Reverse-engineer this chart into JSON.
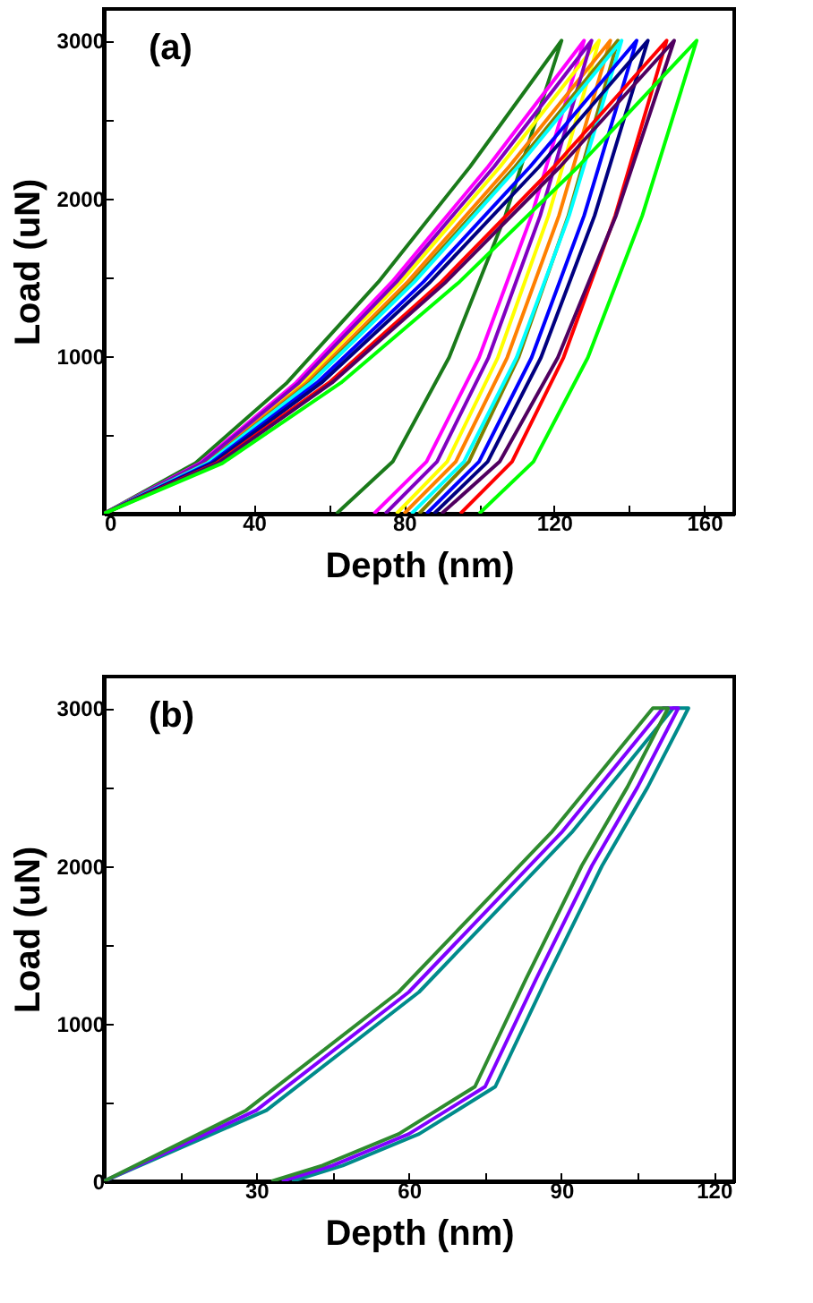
{
  "chart_data": [
    {
      "type": "line",
      "xlabel": "Depth (nm)",
      "ylabel": "Load (uN)",
      "annotations": [
        "(a)"
      ],
      "marker": "none",
      "line_style": "solid",
      "grid": false,
      "xlim": [
        0,
        168
      ],
      "ylim": [
        0,
        3200
      ],
      "xticks": [
        0,
        {
          "value": 20,
          "label": null
        },
        40,
        {
          "value": 60,
          "label": null
        },
        80,
        {
          "value": 100,
          "label": null
        },
        120,
        {
          "value": 140,
          "label": null
        },
        160
      ],
      "yticks": [
        {
          "value": 500,
          "label": null
        },
        1000,
        {
          "value": 1500,
          "label": null
        },
        2000,
        {
          "value": 2500,
          "label": null
        },
        3000
      ],
      "series": [
        {
          "color": "#1a7a1a",
          "x": [
            0,
            24.4,
            48.8,
            73.2,
            97.6,
            122,
            107,
            92,
            77,
            62
          ],
          "values": [
            0,
            320,
            830,
            1470,
            2200,
            3000,
            1890,
            990,
            330,
            0
          ]
        },
        {
          "color": "#ff00ff",
          "x": [
            0,
            25.6,
            51.2,
            76.8,
            102.4,
            128,
            114,
            100,
            86,
            72
          ],
          "values": [
            0,
            320,
            830,
            1470,
            2200,
            3000,
            1890,
            990,
            330,
            0
          ]
        },
        {
          "color": "#ffff00",
          "x": [
            0,
            26.4,
            52.8,
            79.2,
            105.6,
            132,
            118.5,
            105,
            91.5,
            78
          ],
          "values": [
            0,
            320,
            830,
            1470,
            2200,
            3000,
            1890,
            990,
            330,
            0
          ]
        },
        {
          "color": "#ff8000",
          "x": [
            0,
            27,
            54,
            81,
            108,
            135,
            121.3,
            107.5,
            93.8,
            80
          ],
          "values": [
            0,
            320,
            830,
            1470,
            2200,
            3000,
            1890,
            990,
            330,
            0
          ]
        },
        {
          "color": "#8000c0",
          "x": [
            0,
            26,
            52,
            78,
            104,
            130,
            116.3,
            102.5,
            88.8,
            75
          ],
          "values": [
            0,
            320,
            830,
            1470,
            2200,
            3000,
            1890,
            990,
            330,
            0
          ]
        },
        {
          "color": "#808000",
          "x": [
            0,
            27.4,
            54.8,
            82.2,
            109.6,
            137,
            123.8,
            110.5,
            97.3,
            84
          ],
          "values": [
            0,
            320,
            830,
            1470,
            2200,
            3000,
            1890,
            990,
            330,
            0
          ]
        },
        {
          "color": "#00ffff",
          "x": [
            0,
            27.6,
            55.2,
            82.8,
            110.4,
            138,
            124,
            110,
            96,
            82
          ],
          "values": [
            0,
            320,
            830,
            1470,
            2200,
            3000,
            1890,
            990,
            330,
            0
          ]
        },
        {
          "color": "#0000ff",
          "x": [
            0,
            28.4,
            56.8,
            85.2,
            113.6,
            142,
            128,
            114,
            100,
            86
          ],
          "values": [
            0,
            320,
            830,
            1470,
            2200,
            3000,
            1890,
            990,
            330,
            0
          ]
        },
        {
          "color": "#000080",
          "x": [
            0,
            29,
            58,
            87,
            116,
            145,
            130.8,
            116.5,
            102.3,
            88
          ],
          "values": [
            0,
            320,
            830,
            1470,
            2200,
            3000,
            1890,
            990,
            330,
            0
          ]
        },
        {
          "color": "#ff0000",
          "x": [
            0,
            30,
            60,
            90,
            120,
            150,
            136.3,
            122.5,
            108.8,
            95
          ],
          "values": [
            0,
            320,
            830,
            1470,
            2200,
            3000,
            1890,
            990,
            330,
            0
          ]
        },
        {
          "color": "#500060",
          "x": [
            0,
            30.4,
            60.8,
            91.2,
            121.6,
            152,
            136.5,
            121,
            105.5,
            90
          ],
          "values": [
            0,
            320,
            830,
            1470,
            2200,
            3000,
            1890,
            990,
            330,
            0
          ]
        },
        {
          "color": "#00ff00",
          "x": [
            0,
            31.6,
            63.2,
            94.8,
            126.4,
            158,
            143.5,
            129,
            114.5,
            100
          ],
          "values": [
            0,
            320,
            830,
            1470,
            2200,
            3000,
            1890,
            990,
            330,
            0
          ]
        }
      ]
    },
    {
      "type": "line",
      "xlabel": "Depth (nm)",
      "ylabel": "Load (uN)",
      "annotations": [
        "(b)"
      ],
      "marker": "none",
      "line_style": "solid",
      "grid": false,
      "xlim": [
        0,
        124
      ],
      "ylim": [
        0,
        3200
      ],
      "xticks": [
        {
          "value": 15,
          "label": null
        },
        30,
        {
          "value": 45,
          "label": null
        },
        60,
        {
          "value": 75,
          "label": null
        },
        90,
        {
          "value": 105,
          "label": null
        },
        120
      ],
      "yticks": [
        0,
        {
          "value": 500,
          "label": null
        },
        1000,
        {
          "value": 1500,
          "label": null
        },
        2000,
        {
          "value": 2500,
          "label": null
        },
        3000
      ],
      "series": [
        {
          "color": "#008b8b",
          "x": [
            0,
            32,
            62,
            92,
            112,
            115,
            107,
            98,
            87,
            77,
            62,
            47,
            37
          ],
          "values": [
            0,
            450,
            1200,
            2210,
            3000,
            3000,
            2500,
            2000,
            1280,
            600,
            300,
            100,
            0
          ]
        },
        {
          "color": "#8000ff",
          "x": [
            0,
            30,
            60,
            90,
            110,
            113,
            105,
            96,
            85,
            75,
            60,
            45,
            35
          ],
          "values": [
            0,
            450,
            1200,
            2210,
            3000,
            3000,
            2500,
            2000,
            1280,
            600,
            300,
            100,
            0
          ]
        },
        {
          "color": "#2e8b2e",
          "x": [
            0,
            28,
            58,
            88,
            108,
            111,
            103,
            94,
            83,
            73,
            58,
            43,
            33
          ],
          "values": [
            0,
            450,
            1200,
            2210,
            3000,
            3000,
            2500,
            2000,
            1280,
            600,
            300,
            100,
            0
          ]
        }
      ]
    }
  ]
}
